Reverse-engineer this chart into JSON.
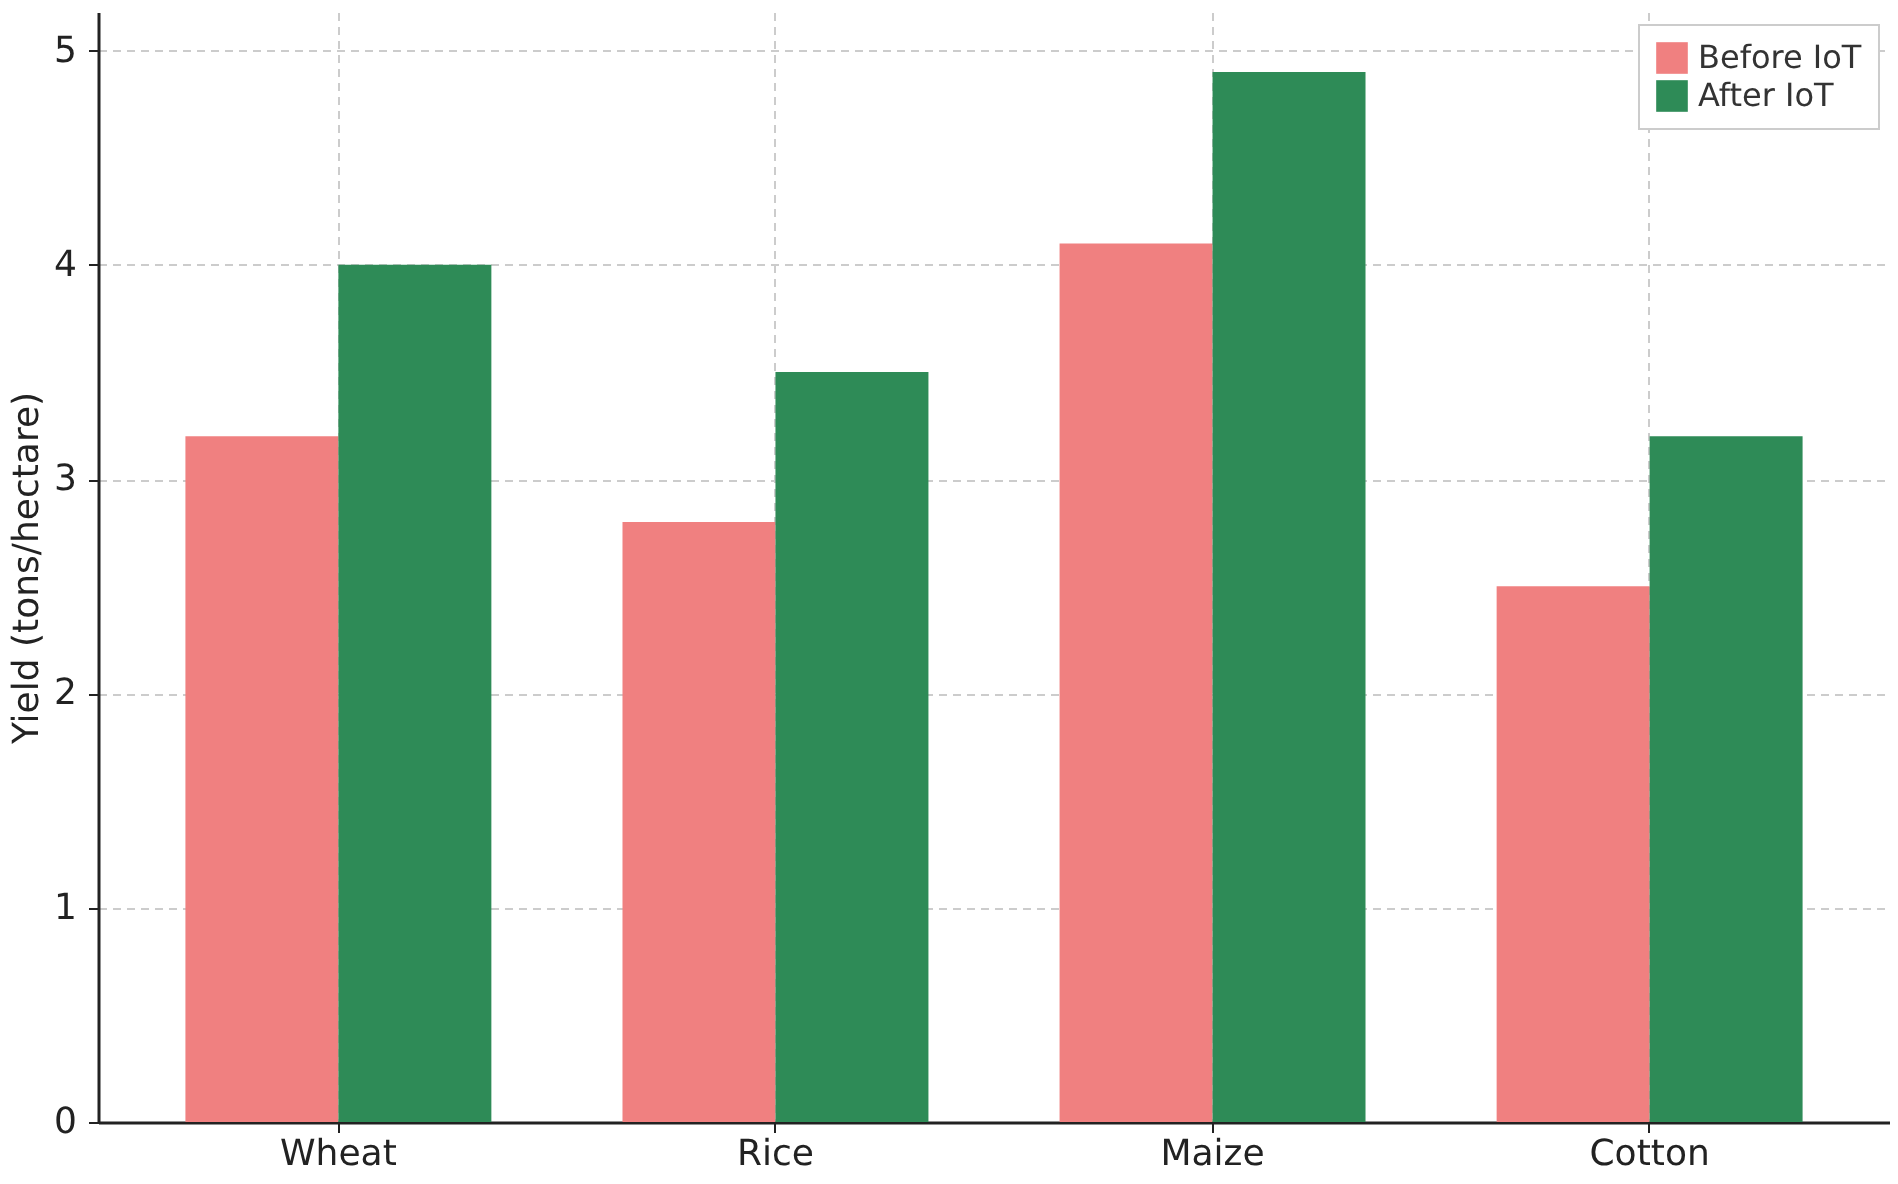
{
  "chart_data": {
    "type": "bar",
    "ylabel": "Yield (tons/hectare)",
    "categories": [
      "Wheat",
      "Rice",
      "Maize",
      "Cotton"
    ],
    "series": [
      {
        "name": "Before IoT",
        "color": "#f08080",
        "values": [
          3.2,
          2.8,
          4.1,
          2.5
        ]
      },
      {
        "name": "After IoT",
        "color": "#2e8b57",
        "values": [
          4.0,
          3.5,
          4.9,
          3.2
        ]
      }
    ],
    "ylim": [
      0,
      5.18
    ],
    "yticks": [
      0,
      1,
      2,
      3,
      4,
      5
    ],
    "grid": true,
    "legend": "top right"
  }
}
